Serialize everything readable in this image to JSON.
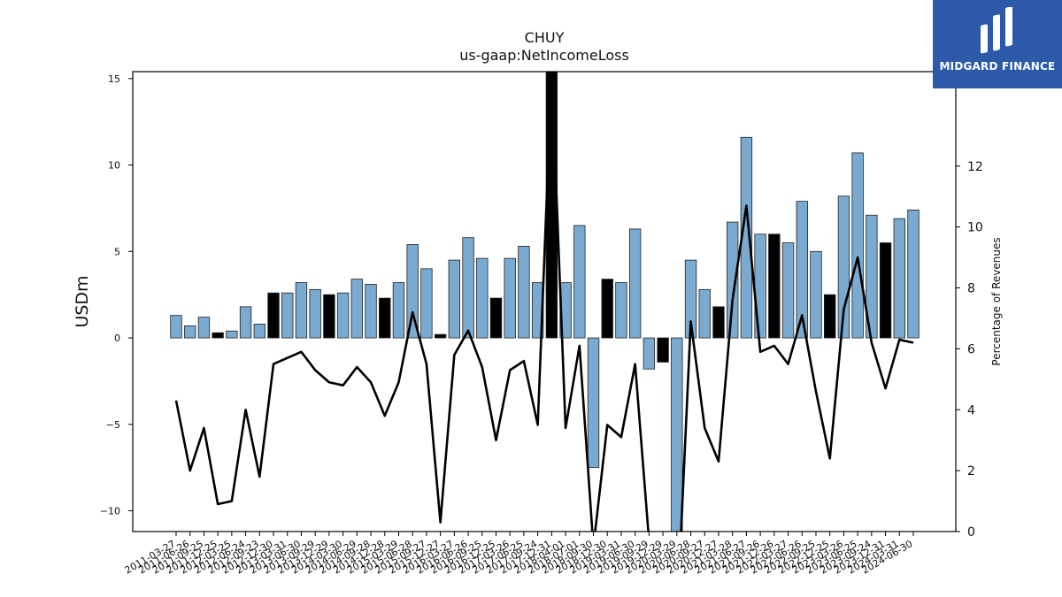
{
  "chart_data": {
    "type": "bar",
    "title": "CHUY",
    "subtitle": "us-gaap:NetIncomeLoss",
    "ylabel": "USDm",
    "y2label": "Percentage of Revenues",
    "ylim": [
      -11.2,
      15.4
    ],
    "y2lim": [
      0,
      15.1
    ],
    "yticks": [
      -10,
      -5,
      0,
      5,
      10,
      15
    ],
    "y2ticks": [
      0,
      2,
      4,
      6,
      8,
      10,
      12
    ],
    "grid": false,
    "bar_colors": {
      "default": "#7aaad0",
      "highlight": "#000000"
    },
    "line_color": "#000000",
    "categories": [
      "2011-03-27",
      "2011-06-26",
      "2011-09-25",
      "2011-12-25",
      "2012-03-25",
      "2012-06-24",
      "2012-09-23",
      "2012-12-30",
      "2013-03-31",
      "2013-06-30",
      "2013-09-29",
      "2013-12-29",
      "2014-03-30",
      "2014-06-29",
      "2014-09-28",
      "2014-12-28",
      "2015-03-29",
      "2015-06-28",
      "2015-09-27",
      "2015-12-27",
      "2016-03-27",
      "2016-06-26",
      "2016-09-25",
      "2016-12-25",
      "2017-03-26",
      "2017-06-25",
      "2017-09-24",
      "2017-12-31",
      "2018-04-01",
      "2018-07-01",
      "2018-09-30",
      "2018-12-30",
      "2019-03-31",
      "2019-06-30",
      "2019-09-29",
      "2019-12-29",
      "2020-03-29",
      "2020-06-28",
      "2020-09-27",
      "2020-12-27",
      "2021-03-28",
      "2021-06-27",
      "2021-09-26",
      "2021-12-26",
      "2022-03-27",
      "2022-06-26",
      "2022-09-25",
      "2022-12-25",
      "2023-03-26",
      "2023-06-25",
      "2023-09-24",
      "2023-12-31",
      "2024-03-31",
      "2024-06-30"
    ],
    "series": [
      {
        "values": [
          1.3,
          0.7,
          1.2,
          0.3,
          0.4,
          1.8,
          0.8,
          2.6,
          2.6,
          3.2,
          2.8,
          2.5,
          2.6,
          3.4,
          3.1,
          2.3,
          3.2,
          5.4,
          4.0,
          0.2,
          4.5,
          5.8,
          4.6,
          2.3,
          4.6,
          5.3,
          3.2,
          15.4,
          3.2,
          6.5,
          -7.5,
          3.4,
          3.2,
          6.3,
          -1.8,
          -1.4,
          -11.2,
          4.5,
          2.8,
          1.8,
          6.7,
          11.6,
          6.0,
          6.0,
          5.5,
          7.9,
          5.0,
          2.5,
          8.2,
          10.7,
          7.1,
          5.5,
          6.9,
          7.4
        ],
        "highlight": [
          false,
          false,
          false,
          true,
          false,
          false,
          false,
          true,
          false,
          false,
          false,
          true,
          false,
          false,
          false,
          true,
          false,
          false,
          false,
          true,
          false,
          false,
          false,
          true,
          false,
          false,
          false,
          true,
          false,
          false,
          false,
          true,
          false,
          false,
          false,
          true,
          false,
          false,
          false,
          true,
          false,
          false,
          false,
          true,
          false,
          false,
          false,
          true,
          false,
          false,
          false,
          true,
          false,
          false
        ]
      },
      {
        "axis": "right",
        "type": "line",
        "values": [
          4.3,
          2.0,
          3.4,
          0.9,
          1.0,
          4.0,
          1.8,
          5.5,
          5.7,
          5.9,
          5.3,
          4.9,
          4.8,
          5.4,
          4.9,
          3.8,
          4.9,
          7.2,
          5.5,
          0.3,
          5.8,
          6.6,
          5.4,
          3.0,
          5.3,
          5.6,
          3.5,
          15.1,
          3.4,
          6.1,
          -0.5,
          3.5,
          3.1,
          5.5,
          -0.3,
          -0.3,
          -3.0,
          6.9,
          3.4,
          2.3,
          7.6,
          10.7,
          5.9,
          6.1,
          5.5,
          7.1,
          4.6,
          2.4,
          7.3,
          9.0,
          6.2,
          4.7,
          6.3,
          6.2
        ]
      }
    ]
  },
  "logo": {
    "text": "MIDGARD FINANCE",
    "icon": "midgard-logo-icon"
  }
}
